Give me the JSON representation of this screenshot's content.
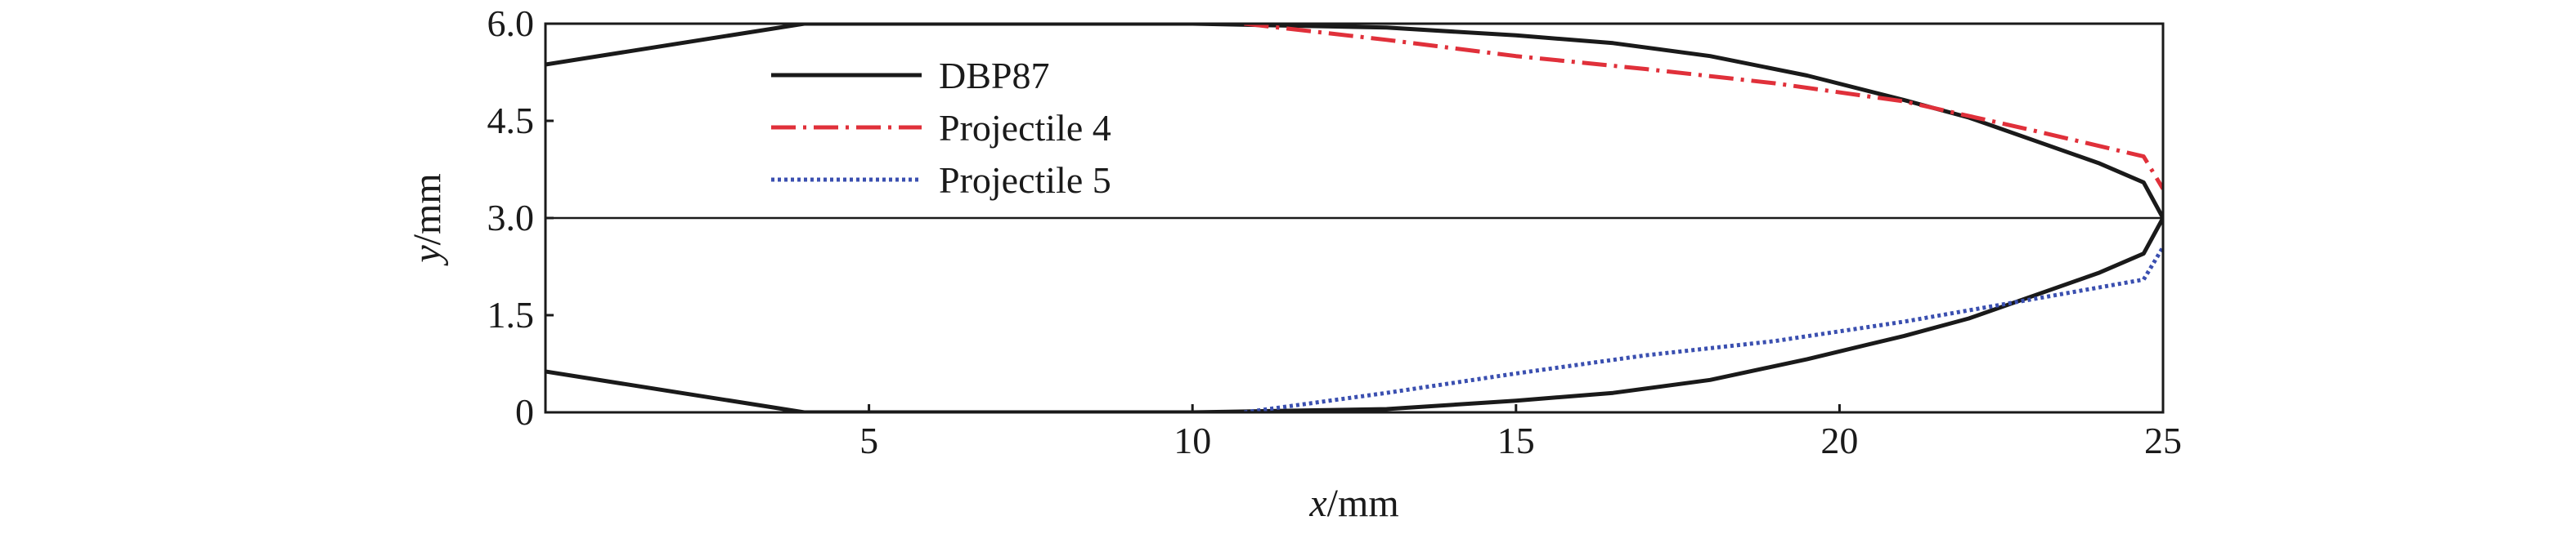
{
  "chart_data": {
    "type": "line",
    "xlabel_var": "x",
    "xlabel_unit": "/mm",
    "ylabel_var": "y",
    "ylabel_unit": "/mm",
    "xlim": [
      0,
      25
    ],
    "ylim": [
      0,
      6.0
    ],
    "x_ticks": [
      5,
      10,
      15,
      20,
      25
    ],
    "y_ticks": [
      0,
      1.5,
      3.0,
      4.5,
      6.0
    ],
    "y_tick_labels": [
      "0",
      "1.5",
      "3.0",
      "4.5",
      "6.0"
    ],
    "reference_line_y": 3.0,
    "legend_position": "top-left",
    "series": [
      {
        "name": "DBP87",
        "color": "#1a1a1a",
        "style": "solid",
        "points": [
          [
            0,
            5.37
          ],
          [
            4,
            6.0
          ],
          [
            10,
            6.0
          ],
          [
            13,
            5.94
          ],
          [
            15,
            5.82
          ],
          [
            16.5,
            5.7
          ],
          [
            18,
            5.5
          ],
          [
            19.5,
            5.2
          ],
          [
            21,
            4.82
          ],
          [
            22,
            4.55
          ],
          [
            23,
            4.2
          ],
          [
            24,
            3.85
          ],
          [
            24.7,
            3.55
          ],
          [
            25,
            3.0
          ],
          [
            24.7,
            2.45
          ],
          [
            24,
            2.15
          ],
          [
            23,
            1.8
          ],
          [
            22,
            1.45
          ],
          [
            21,
            1.18
          ],
          [
            19.5,
            0.82
          ],
          [
            18,
            0.5
          ],
          [
            16.5,
            0.3
          ],
          [
            15,
            0.18
          ],
          [
            13,
            0.05
          ],
          [
            10,
            0.0
          ],
          [
            4,
            0.0
          ],
          [
            0,
            0.63
          ]
        ]
      },
      {
        "name": "Projectile 4",
        "color": "#e0303a",
        "style": "dash-dot",
        "points": [
          [
            10.8,
            6.0
          ],
          [
            13,
            5.75
          ],
          [
            15,
            5.5
          ],
          [
            17,
            5.3
          ],
          [
            19,
            5.08
          ],
          [
            21,
            4.8
          ],
          [
            23,
            4.35
          ],
          [
            24.7,
            3.95
          ],
          [
            25,
            3.45
          ]
        ]
      },
      {
        "name": "Projectile 5",
        "color": "#3a4fb0",
        "style": "dotted",
        "points": [
          [
            10.8,
            0.0
          ],
          [
            13,
            0.3
          ],
          [
            15,
            0.6
          ],
          [
            17,
            0.88
          ],
          [
            19,
            1.1
          ],
          [
            21,
            1.4
          ],
          [
            23,
            1.75
          ],
          [
            24.7,
            2.05
          ],
          [
            25,
            2.55
          ]
        ]
      }
    ]
  }
}
